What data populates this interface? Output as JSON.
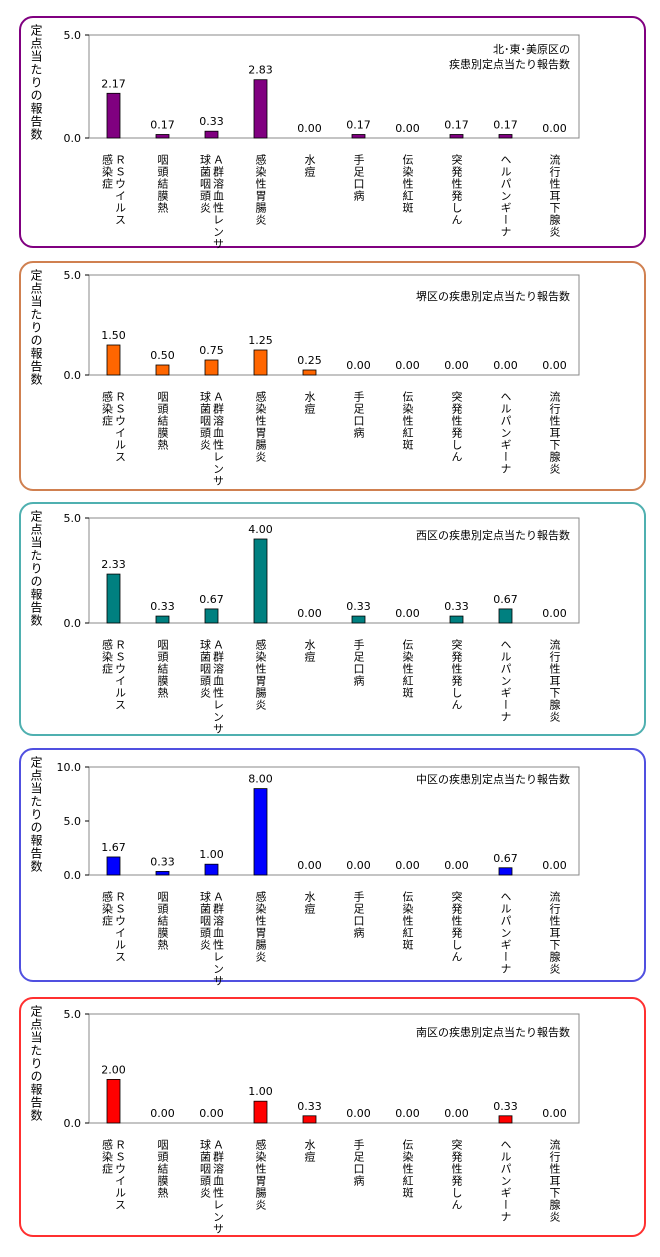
{
  "y_axis_label": "定点当たりの報告数",
  "categories": [
    "ＲＳウイルス感染症",
    "咽頭結膜熱",
    "Ａ群溶血性レンサ球菌咽頭炎",
    "感染性胃腸炎",
    "水痘",
    "手足口病",
    "伝染性紅斑",
    "突発性発しん",
    "ヘルパンギーナ",
    "流行性耳下腺炎"
  ],
  "category_label_columns": [
    [
      "ＲＳウイルス",
      "感染症"
    ],
    [
      "咽頭結膜熱"
    ],
    [
      "Ａ群溶血性レンサ",
      "球菌咽頭炎"
    ],
    [
      "感染性胃腸炎"
    ],
    [
      "水痘"
    ],
    [
      "手足口病"
    ],
    [
      "伝染性紅斑"
    ],
    [
      "突発性発しん"
    ],
    [
      "ヘルパンギーナ"
    ],
    [
      "流行性耳下腺炎"
    ]
  ],
  "chart_data": [
    {
      "type": "bar",
      "title_lines": [
        "北･東･美原区の",
        "疾患別定点当たり報告数"
      ],
      "ylabel": "定点当たりの報告数",
      "ylim": [
        0,
        5
      ],
      "y_ticks": [
        "0.0",
        "5.0"
      ],
      "color": "#800080",
      "border_color": "#800080",
      "values": [
        2.17,
        0.17,
        0.33,
        2.83,
        0.0,
        0.17,
        0.0,
        0.17,
        0.17,
        0.0
      ],
      "value_labels": [
        "2.17",
        "0.17",
        "0.33",
        "2.83",
        "0.00",
        "0.17",
        "0.00",
        "0.17",
        "0.17",
        "0.00"
      ]
    },
    {
      "type": "bar",
      "title_lines": [
        "堺区の疾患別定点当たり報告数"
      ],
      "ylabel": "定点当たりの報告数",
      "ylim": [
        0,
        5
      ],
      "y_ticks": [
        "0.0",
        "5.0"
      ],
      "color": "#ff6600",
      "border_color": "#d08050",
      "values": [
        1.5,
        0.5,
        0.75,
        1.25,
        0.25,
        0.0,
        0.0,
        0.0,
        0.0,
        0.0
      ],
      "value_labels": [
        "1.50",
        "0.50",
        "0.75",
        "1.25",
        "0.25",
        "0.00",
        "0.00",
        "0.00",
        "0.00",
        "0.00"
      ]
    },
    {
      "type": "bar",
      "title_lines": [
        "西区の疾患別定点当たり報告数"
      ],
      "ylabel": "定点当たりの報告数",
      "ylim": [
        0,
        5
      ],
      "y_ticks": [
        "0.0",
        "5.0"
      ],
      "color": "#008080",
      "border_color": "#4fb0b0",
      "values": [
        2.33,
        0.33,
        0.67,
        4.0,
        0.0,
        0.33,
        0.0,
        0.33,
        0.67,
        0.0
      ],
      "value_labels": [
        "2.33",
        "0.33",
        "0.67",
        "4.00",
        "0.00",
        "0.33",
        "0.00",
        "0.33",
        "0.67",
        "0.00"
      ]
    },
    {
      "type": "bar",
      "title_lines": [
        "中区の疾患別定点当たり報告数"
      ],
      "ylabel": "定点当たりの報告数",
      "ylim": [
        0,
        10
      ],
      "y_ticks": [
        "0.0",
        "5.0",
        "10.0"
      ],
      "color": "#0000ff",
      "border_color": "#5050e0",
      "values": [
        1.67,
        0.33,
        1.0,
        8.0,
        0.0,
        0.0,
        0.0,
        0.0,
        0.67,
        0.0
      ],
      "value_labels": [
        "1.67",
        "0.33",
        "1.00",
        "8.00",
        "0.00",
        "0.00",
        "0.00",
        "0.00",
        "0.67",
        "0.00"
      ]
    },
    {
      "type": "bar",
      "title_lines": [
        "南区の疾患別定点当たり報告数"
      ],
      "ylabel": "定点当たりの報告数",
      "ylim": [
        0,
        5
      ],
      "y_ticks": [
        "0.0",
        "5.0"
      ],
      "color": "#ff0000",
      "border_color": "#ff3030",
      "values": [
        2.0,
        0.0,
        0.0,
        1.0,
        0.33,
        0.0,
        0.0,
        0.0,
        0.33,
        0.0
      ],
      "value_labels": [
        "2.00",
        "0.00",
        "0.00",
        "1.00",
        "0.33",
        "0.00",
        "0.00",
        "0.00",
        "0.33",
        "0.00"
      ]
    }
  ]
}
